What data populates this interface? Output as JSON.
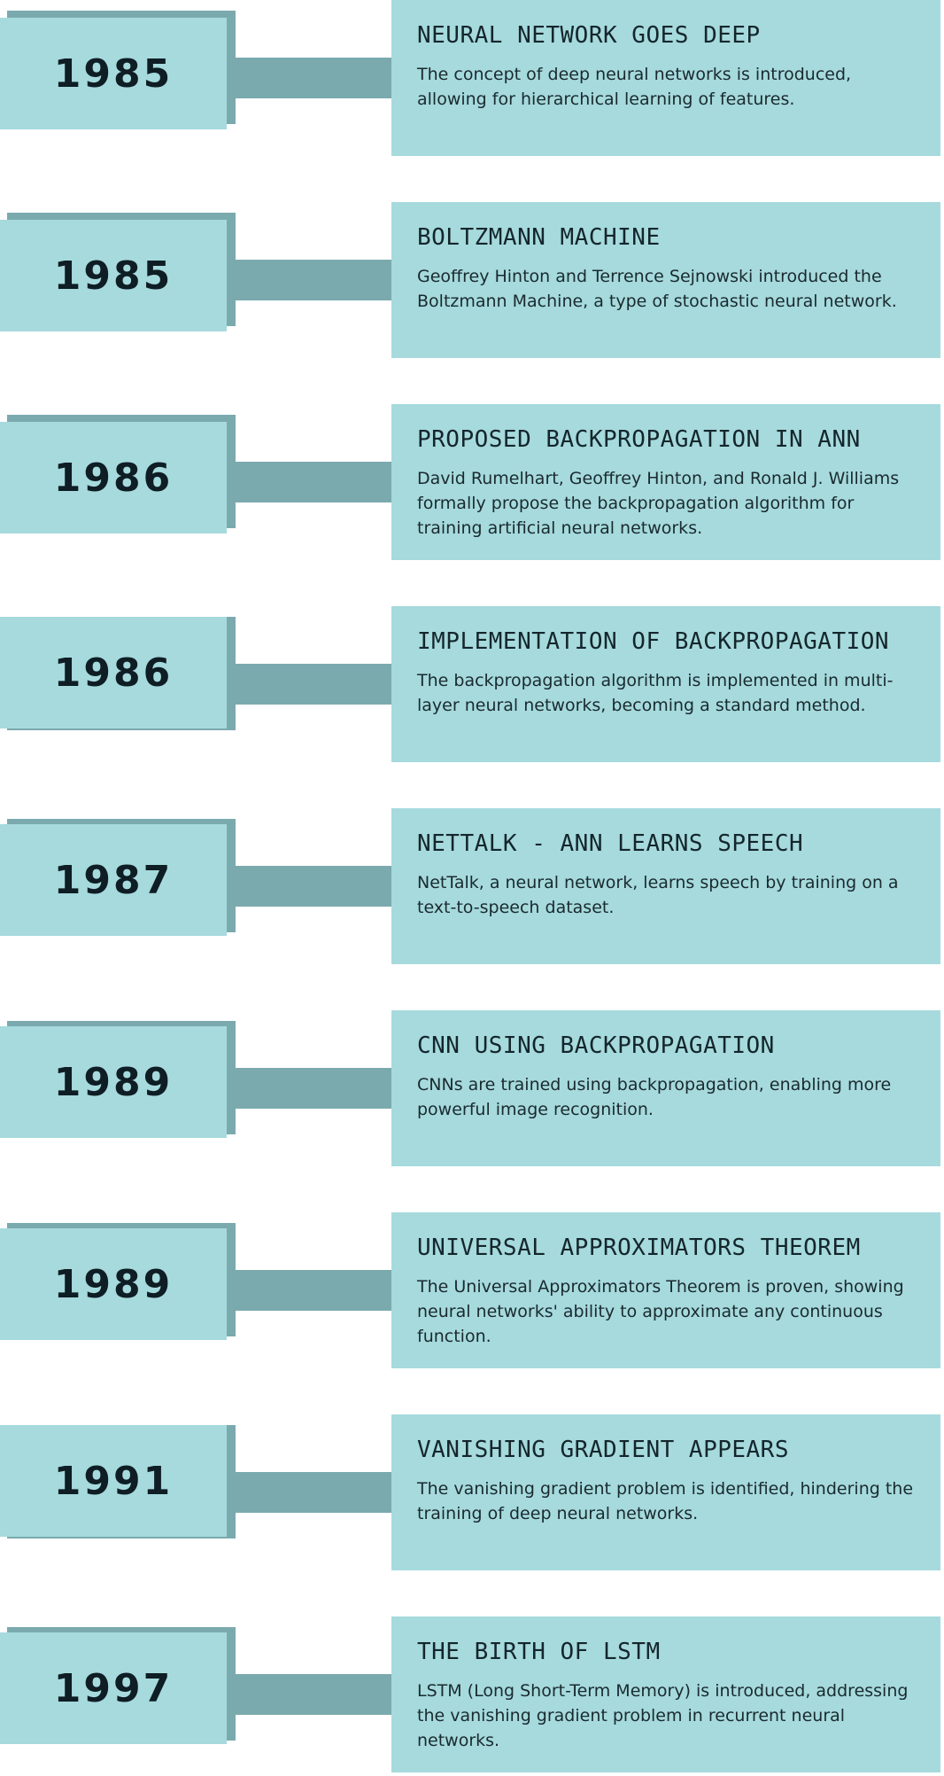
{
  "colors": {
    "box_fill": "#a6dadd",
    "shadow_and_connector": "#7aaaae",
    "year_text": "#0f1d24",
    "body_text": "#1a2a2f"
  },
  "events": [
    {
      "year": "1985",
      "title": "NEURAL NETWORK GOES DEEP",
      "description": "The concept of deep neural networks is introduced, allowing for hierarchical learning of features."
    },
    {
      "year": "1985",
      "title": "BOLTZMANN MACHINE",
      "description": "Geoffrey Hinton and Terrence Sejnowski introduced the Boltzmann Machine, a type of stochastic neural network."
    },
    {
      "year": "1986",
      "title": "PROPOSED BACKPROPAGATION IN ANN",
      "description": "David Rumelhart, Geoffrey Hinton, and Ronald J. Williams formally propose the backpropagation algorithm for training artificial neural networks."
    },
    {
      "year": "1986",
      "title": "IMPLEMENTATION OF BACKPROPAGATION",
      "description": "The backpropagation algorithm is implemented in multi-layer neural networks, becoming a standard method."
    },
    {
      "year": "1987",
      "title": "NETTALK - ANN LEARNS SPEECH",
      "description": "NetTalk, a neural network, learns speech by training on a text-to-speech dataset."
    },
    {
      "year": "1989",
      "title": "CNN USING BACKPROPAGATION",
      "description": "CNNs are trained using backpropagation, enabling more powerful image recognition."
    },
    {
      "year": "1989",
      "title": "UNIVERSAL APPROXIMATORS THEOREM",
      "description": "The Universal Approximators Theorem is proven, showing neural networks' ability to approximate any continuous function."
    },
    {
      "year": "1991",
      "title": "VANISHING GRADIENT APPEARS",
      "description": "The vanishing gradient problem is identified, hindering the training of deep neural networks."
    },
    {
      "year": "1997",
      "title": "THE BIRTH OF LSTM",
      "description": "LSTM (Long Short-Term Memory) is introduced, addressing the vanishing gradient problem in recurrent neural networks."
    }
  ]
}
